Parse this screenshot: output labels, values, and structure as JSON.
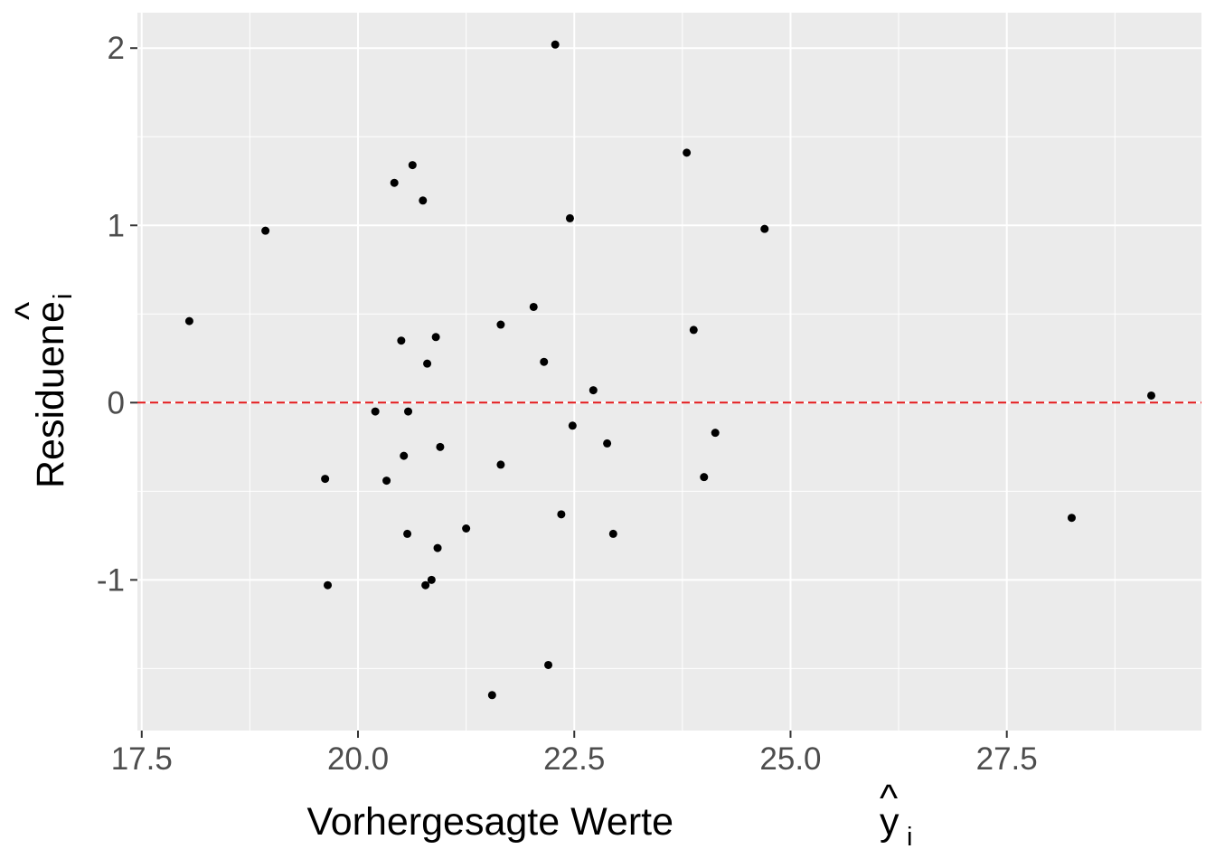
{
  "chart_data": {
    "type": "scatter",
    "xlabel": "Vorhergesagte Werte",
    "xlabel_symbol": "y",
    "xlabel_hat": "^",
    "xlabel_subscript": "i",
    "ylabel": "Residuen",
    "ylabel_symbol": "e",
    "ylabel_hat": "^",
    "ylabel_subscript": "i",
    "xlim": [
      17.45,
      29.75
    ],
    "ylim": [
      -1.85,
      2.2
    ],
    "x_ticks": [
      17.5,
      20.0,
      22.5,
      25.0,
      27.5
    ],
    "x_tick_labels": [
      "17.5",
      "20.0",
      "22.5",
      "25.0",
      "27.5"
    ],
    "y_ticks": [
      -1,
      0,
      1,
      2
    ],
    "y_tick_labels": [
      "-1",
      "0",
      "1",
      "2"
    ],
    "grid": true,
    "reference_line": {
      "y": 0,
      "style": "dashed",
      "color": "#e31a1c"
    },
    "panel_background": "#ebebeb",
    "grid_color": "#ffffff",
    "point_color": "#000000",
    "points": [
      {
        "x": 18.05,
        "y": 0.46
      },
      {
        "x": 18.93,
        "y": 0.97
      },
      {
        "x": 19.62,
        "y": -0.43
      },
      {
        "x": 19.65,
        "y": -1.03
      },
      {
        "x": 20.2,
        "y": -0.05
      },
      {
        "x": 20.33,
        "y": -0.44
      },
      {
        "x": 20.42,
        "y": 1.24
      },
      {
        "x": 20.5,
        "y": 0.35
      },
      {
        "x": 20.53,
        "y": -0.3
      },
      {
        "x": 20.57,
        "y": -0.74
      },
      {
        "x": 20.58,
        "y": -0.05
      },
      {
        "x": 20.63,
        "y": 1.34
      },
      {
        "x": 20.75,
        "y": 1.14
      },
      {
        "x": 20.78,
        "y": -1.03
      },
      {
        "x": 20.8,
        "y": 0.22
      },
      {
        "x": 20.85,
        "y": -1.0
      },
      {
        "x": 20.9,
        "y": 0.37
      },
      {
        "x": 20.92,
        "y": -0.82
      },
      {
        "x": 20.95,
        "y": -0.25
      },
      {
        "x": 21.25,
        "y": -0.71
      },
      {
        "x": 21.55,
        "y": -1.65
      },
      {
        "x": 21.65,
        "y": -0.35
      },
      {
        "x": 21.65,
        "y": 0.44
      },
      {
        "x": 22.03,
        "y": 0.54
      },
      {
        "x": 22.15,
        "y": 0.23
      },
      {
        "x": 22.2,
        "y": -1.48
      },
      {
        "x": 22.28,
        "y": 2.02
      },
      {
        "x": 22.35,
        "y": -0.63
      },
      {
        "x": 22.45,
        "y": 1.04
      },
      {
        "x": 22.48,
        "y": -0.13
      },
      {
        "x": 22.72,
        "y": 0.07
      },
      {
        "x": 22.88,
        "y": -0.23
      },
      {
        "x": 22.95,
        "y": -0.74
      },
      {
        "x": 23.8,
        "y": 1.41
      },
      {
        "x": 23.88,
        "y": 0.41
      },
      {
        "x": 24.0,
        "y": -0.42
      },
      {
        "x": 24.13,
        "y": -0.17
      },
      {
        "x": 24.7,
        "y": 0.98
      },
      {
        "x": 28.25,
        "y": -0.65
      },
      {
        "x": 29.17,
        "y": 0.04
      }
    ]
  }
}
